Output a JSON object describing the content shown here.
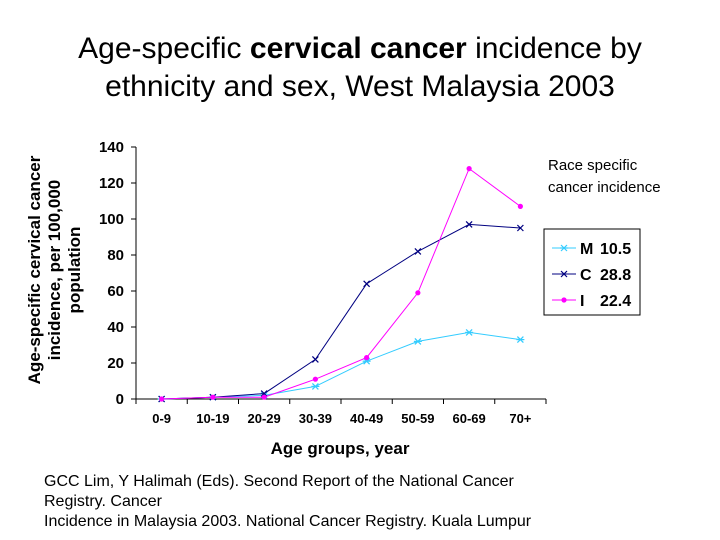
{
  "title": {
    "line1_prefix": "Age-specific ",
    "line1_bold": "cervical cancer",
    "line1_suffix": " incidence by",
    "line2": "ethnicity and sex, West Malaysia 2003"
  },
  "chart_data": {
    "type": "line",
    "title": "Age-specific cervical cancer incidence by ethnicity and sex, West Malaysia 2003",
    "xlabel": "Age groups, year",
    "ylabel_lines": [
      "Age-specific cervical cancer",
      "incidence, per 100,000",
      "population"
    ],
    "ylabel": "Age-specific cervical cancer incidence, per 100,000 population",
    "categories": [
      "0-9",
      "10-19",
      "20-29",
      "30-39",
      "40-49",
      "50-59",
      "60-69",
      "70+"
    ],
    "ylim": [
      0,
      140
    ],
    "yticks": [
      0,
      20,
      40,
      60,
      80,
      100,
      120,
      140
    ],
    "grid": false,
    "legend_position": "right",
    "legend_note_lines": [
      "Race specific",
      "cancer incidence"
    ],
    "series": [
      {
        "name": "M",
        "rate": "10.5",
        "color": "#33ccff",
        "marker": "star",
        "values": [
          0,
          1,
          2,
          7,
          21,
          32,
          37,
          33
        ]
      },
      {
        "name": "C",
        "rate": "28.8",
        "color": "#000080",
        "marker": "x",
        "values": [
          0,
          1,
          3,
          22,
          64,
          82,
          97,
          95
        ]
      },
      {
        "name": "I",
        "rate": "22.4",
        "color": "#ff00ff",
        "marker": "circle",
        "values": [
          0,
          1,
          1,
          11,
          23,
          59,
          128,
          107
        ]
      }
    ]
  },
  "citation": {
    "line1": "GCC Lim, Y Halimah (Eds). Second Report of the National Cancer",
    "line2": "Registry. Cancer",
    "line3": "Incidence in Malaysia 2003. National Cancer Registry. Kuala Lumpur"
  }
}
